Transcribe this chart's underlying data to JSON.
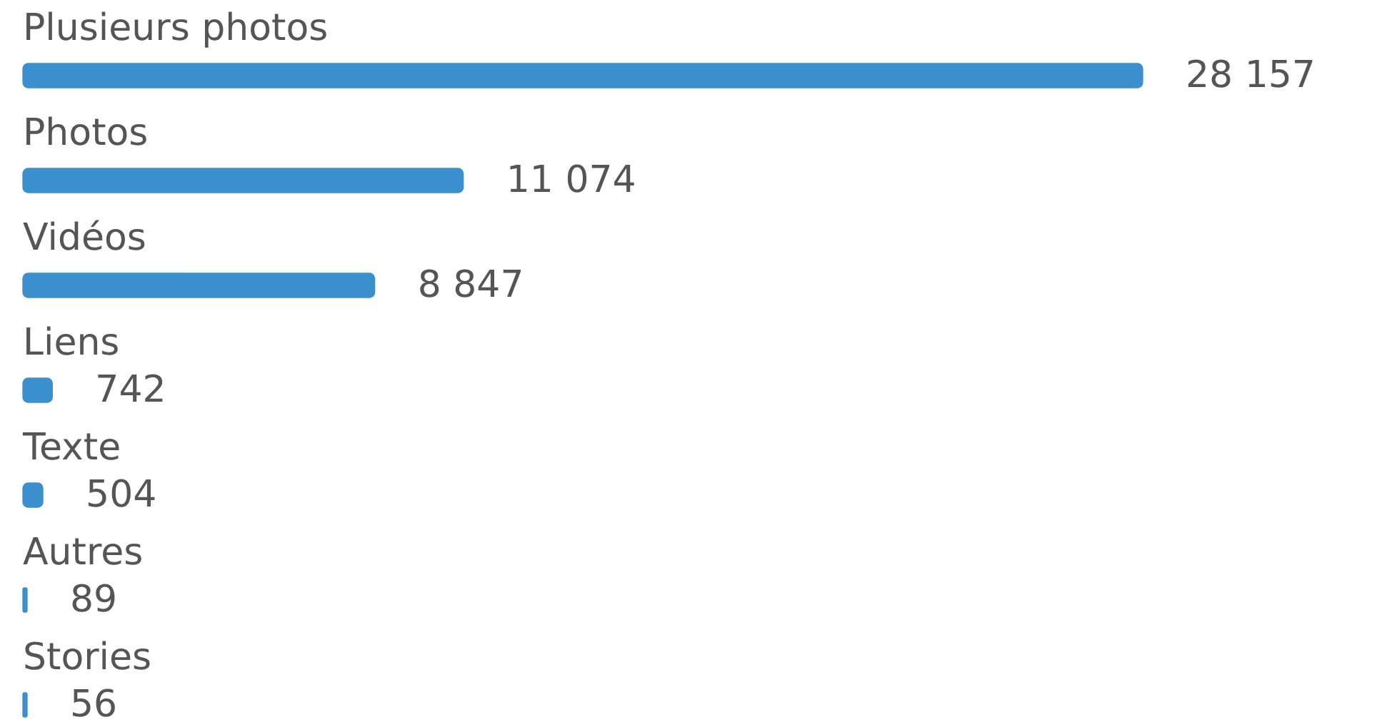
{
  "chart_data": {
    "type": "bar",
    "orientation": "horizontal",
    "categories": [
      "Plusieurs photos",
      "Photos",
      "Vidéos",
      "Liens",
      "Texte",
      "Autres",
      "Stories"
    ],
    "values": [
      28157,
      11074,
      8847,
      742,
      504,
      89,
      56
    ],
    "value_labels": [
      "28 157",
      "11 074",
      "8 847",
      "742",
      "504",
      "89",
      "56"
    ],
    "color": "#3a8fcc"
  }
}
